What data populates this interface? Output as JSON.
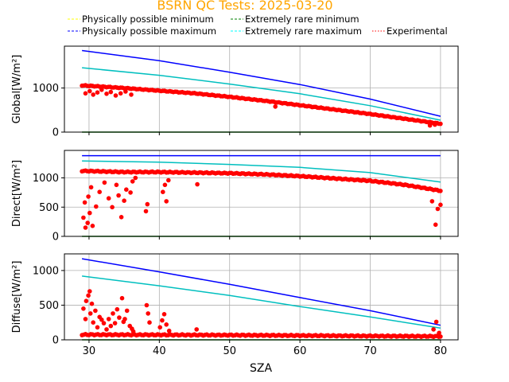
{
  "chart_data": {
    "type": "scatter",
    "title": "BSRN QC Tests: 2025-03-20",
    "title_color": "#ffa500",
    "xlabel": "SZA",
    "xlim": [
      26.5,
      82.5
    ],
    "xticks": [
      30,
      40,
      50,
      60,
      70,
      80
    ],
    "grid": true,
    "legend_position": "top",
    "legend": [
      {
        "label": "Physically possible minimum",
        "color": "#ffff00",
        "style": "dashed"
      },
      {
        "label": "Extremely rare minimum",
        "color": "#008000",
        "style": "dashed"
      },
      {
        "label": "Physically possible maximum",
        "color": "#0000ff",
        "style": "dashed"
      },
      {
        "label": "Extremely rare maximum",
        "color": "#00ffff",
        "style": "dashed"
      },
      {
        "label": "Experimental",
        "color": "#ff0000",
        "style": "dotted"
      }
    ],
    "colors": {
      "ppl_max": "#0000ff",
      "erl_max": "#00bfbf",
      "minimum": "#008000",
      "experimental": "#ff0000"
    },
    "panels": [
      {
        "name": "global",
        "ylabel": "Global[W/m²]",
        "ylim": [
          0,
          1950
        ],
        "yticks": [
          0,
          1000
        ],
        "sza_range": [
          29,
          80
        ],
        "ppl_max": [
          [
            29,
            1850
          ],
          [
            40,
            1620
          ],
          [
            50,
            1360
          ],
          [
            60,
            1080
          ],
          [
            70,
            750
          ],
          [
            80,
            360
          ]
        ],
        "erl_max": [
          [
            29,
            1460
          ],
          [
            40,
            1290
          ],
          [
            50,
            1090
          ],
          [
            60,
            870
          ],
          [
            70,
            600
          ],
          [
            80,
            270
          ]
        ],
        "minimum": [
          [
            29,
            0
          ],
          [
            80,
            0
          ]
        ],
        "experimental_trend": [
          [
            29,
            1060
          ],
          [
            35,
            1000
          ],
          [
            40,
            940
          ],
          [
            45,
            880
          ],
          [
            50,
            800
          ],
          [
            55,
            710
          ],
          [
            60,
            610
          ],
          [
            65,
            510
          ],
          [
            70,
            410
          ],
          [
            75,
            300
          ],
          [
            80,
            190
          ]
        ],
        "experimental_outliers": [
          [
            29.5,
            880
          ],
          [
            30.1,
            930
          ],
          [
            30.6,
            850
          ],
          [
            31.2,
            900
          ],
          [
            31.8,
            960
          ],
          [
            32.5,
            870
          ],
          [
            33.1,
            910
          ],
          [
            33.8,
            830
          ],
          [
            34.5,
            880
          ],
          [
            35.2,
            920
          ],
          [
            36.0,
            850
          ],
          [
            56.5,
            580
          ],
          [
            78.5,
            150
          ],
          [
            79.2,
            170
          ]
        ]
      },
      {
        "name": "direct",
        "ylabel": "Direct[W/m²]",
        "ylim": [
          0,
          1470
        ],
        "yticks": [
          0,
          500,
          1000
        ],
        "sza_range": [
          29,
          80
        ],
        "ppl_max": [
          [
            29,
            1380
          ],
          [
            80,
            1380
          ]
        ],
        "erl_max": [
          [
            29,
            1290
          ],
          [
            40,
            1270
          ],
          [
            50,
            1230
          ],
          [
            60,
            1180
          ],
          [
            70,
            1090
          ],
          [
            80,
            930
          ]
        ],
        "minimum": [
          [
            29,
            0
          ],
          [
            80,
            0
          ]
        ],
        "experimental_trend": [
          [
            29,
            1120
          ],
          [
            35,
            1100
          ],
          [
            40,
            1100
          ],
          [
            45,
            1090
          ],
          [
            50,
            1080
          ],
          [
            55,
            1060
          ],
          [
            60,
            1030
          ],
          [
            65,
            990
          ],
          [
            70,
            950
          ],
          [
            75,
            880
          ],
          [
            80,
            780
          ]
        ],
        "experimental_outliers": [
          [
            29.2,
            320
          ],
          [
            29.5,
            150
          ],
          [
            29.8,
            230
          ],
          [
            30.1,
            400
          ],
          [
            30.5,
            180
          ],
          [
            31.0,
            510
          ],
          [
            29.4,
            580
          ],
          [
            29.9,
            680
          ],
          [
            30.3,
            840
          ],
          [
            31.5,
            760
          ],
          [
            32.2,
            920
          ],
          [
            32.8,
            650
          ],
          [
            33.3,
            500
          ],
          [
            33.9,
            880
          ],
          [
            34.2,
            700
          ],
          [
            34.6,
            330
          ],
          [
            35.0,
            610
          ],
          [
            35.3,
            800
          ],
          [
            35.9,
            750
          ],
          [
            36.2,
            940
          ],
          [
            36.6,
            1000
          ],
          [
            38.1,
            430
          ],
          [
            38.3,
            550
          ],
          [
            40.5,
            760
          ],
          [
            40.8,
            880
          ],
          [
            41.0,
            600
          ],
          [
            41.3,
            960
          ],
          [
            45.4,
            890
          ],
          [
            78.8,
            600
          ],
          [
            79.3,
            200
          ],
          [
            79.6,
            470
          ],
          [
            80.0,
            540
          ]
        ]
      },
      {
        "name": "diffuse",
        "ylabel": "Diffuse[W/m²]",
        "ylim": [
          0,
          1240
        ],
        "yticks": [
          0,
          500,
          1000
        ],
        "sza_range": [
          29,
          80
        ],
        "ppl_max": [
          [
            29,
            1170
          ],
          [
            40,
            980
          ],
          [
            50,
            800
          ],
          [
            60,
            610
          ],
          [
            70,
            420
          ],
          [
            80,
            210
          ]
        ],
        "erl_max": [
          [
            29,
            920
          ],
          [
            40,
            780
          ],
          [
            50,
            640
          ],
          [
            60,
            480
          ],
          [
            70,
            330
          ],
          [
            80,
            170
          ]
        ],
        "minimum": [
          [
            29,
            0
          ],
          [
            80,
            0
          ]
        ],
        "experimental_trend": [
          [
            29,
            75
          ],
          [
            40,
            72
          ],
          [
            50,
            68
          ],
          [
            60,
            62
          ],
          [
            70,
            55
          ],
          [
            80,
            50
          ]
        ],
        "experimental_outliers": [
          [
            29.2,
            450
          ],
          [
            29.5,
            300
          ],
          [
            29.6,
            560
          ],
          [
            29.9,
            640
          ],
          [
            30.1,
            700
          ],
          [
            30.2,
            380
          ],
          [
            30.4,
            520
          ],
          [
            30.6,
            250
          ],
          [
            30.9,
            420
          ],
          [
            31.2,
            180
          ],
          [
            31.5,
            330
          ],
          [
            31.8,
            290
          ],
          [
            32.1,
            240
          ],
          [
            32.5,
            150
          ],
          [
            32.8,
            300
          ],
          [
            33.1,
            200
          ],
          [
            33.4,
            380
          ],
          [
            33.7,
            240
          ],
          [
            34.0,
            440
          ],
          [
            34.3,
            320
          ],
          [
            34.7,
            600
          ],
          [
            34.9,
            260
          ],
          [
            35.1,
            300
          ],
          [
            35.4,
            420
          ],
          [
            35.8,
            200
          ],
          [
            36.1,
            160
          ],
          [
            36.3,
            120
          ],
          [
            38.2,
            500
          ],
          [
            38.4,
            380
          ],
          [
            38.6,
            250
          ],
          [
            40.1,
            180
          ],
          [
            40.4,
            280
          ],
          [
            40.7,
            370
          ],
          [
            41.0,
            220
          ],
          [
            41.4,
            130
          ],
          [
            45.3,
            150
          ],
          [
            79.0,
            150
          ],
          [
            79.4,
            260
          ],
          [
            79.8,
            100
          ]
        ]
      }
    ]
  }
}
